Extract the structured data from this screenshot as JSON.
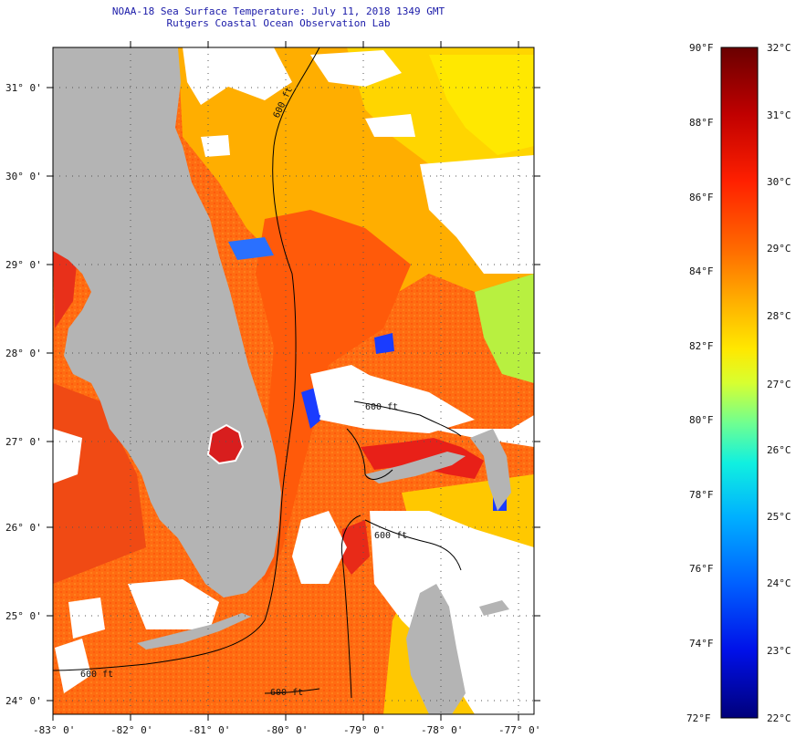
{
  "header": {
    "title_line1": "NOAA-18 Sea Surface Temperature:  July 11, 2018 1349 GMT",
    "title_line2": "Rutgers Coastal Ocean Observation Lab"
  },
  "map": {
    "lat_labels": [
      "31° 0'",
      "30° 0'",
      "29° 0'",
      "28° 0'",
      "27° 0'",
      "26° 0'",
      "25° 0'",
      "24° 0'"
    ],
    "lon_labels": [
      "-83° 0'",
      "-82° 0'",
      "-81° 0'",
      "-80° 0'",
      "-79° 0'",
      "-78° 0'",
      "-77° 0'"
    ],
    "contour_labels": [
      "600 ft",
      "600 ft",
      "600 ft",
      "600 ft",
      "600 ft"
    ],
    "colors": {
      "land": "#b4b4b4",
      "cloud": "#ffffff",
      "warm_water": "#ff6a10",
      "hot_water": "#e8201a",
      "mild_water": "#ffb000",
      "cool_water": "#ffe000",
      "cold_water": "#1a3cff"
    }
  },
  "colorbar": {
    "fahrenheit_labels": [
      "90°F",
      "88°F",
      "86°F",
      "84°F",
      "82°F",
      "80°F",
      "78°F",
      "76°F",
      "74°F",
      "72°F"
    ],
    "celsius_labels": [
      "32°C",
      "31°C",
      "30°C",
      "29°C",
      "28°C",
      "27°C",
      "26°C",
      "25°C",
      "24°C",
      "23°C",
      "22°C"
    ],
    "stops": [
      "#7a0000",
      "#c40000",
      "#ff2a00",
      "#ff7a00",
      "#ffc000",
      "#ffff00",
      "#a8ff40",
      "#40ffb0",
      "#00e0ff",
      "#0090ff",
      "#0030ff",
      "#0000a0"
    ]
  }
}
